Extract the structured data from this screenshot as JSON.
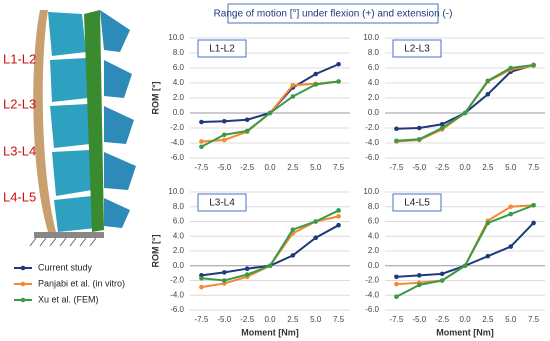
{
  "figure_title": "Range of motion [°] under flexion (+) and extension (-)",
  "image_labels": [
    "L1-L2",
    "L2-L3",
    "L3-L4",
    "L4-L5"
  ],
  "chart_data": [
    {
      "type": "line",
      "title": "L1-L2",
      "y_label": "ROM [°]",
      "categories": [
        "-7.5",
        "-5.0",
        "-2.5",
        "0.0",
        "2.5",
        "5.0",
        "7.5"
      ],
      "ylim": [
        -6,
        10
      ],
      "yticks": [
        {
          "value": -6,
          "label": "-6.0"
        },
        {
          "value": -4,
          "label": "-4.0"
        },
        {
          "value": -2,
          "label": "-2.0"
        },
        {
          "value": 0,
          "label": "0.0"
        },
        {
          "value": 2,
          "label": "2.0"
        },
        {
          "value": 4,
          "label": "4.0"
        },
        {
          "value": 6,
          "label": "6.0"
        },
        {
          "value": 8,
          "label": "8.0"
        },
        {
          "value": 10,
          "label": "10.0"
        }
      ],
      "grid": true,
      "series": [
        {
          "name": "Current study",
          "color": "#1f3a7a",
          "values": [
            -1.2,
            -1.1,
            -0.9,
            0,
            3.4,
            5.2,
            6.5
          ]
        },
        {
          "name": "Panjabi et al. (in vitro)",
          "color": "#f28a30",
          "values": [
            -3.8,
            -3.6,
            -2.5,
            0,
            3.7,
            3.9,
            4.2
          ]
        },
        {
          "name": "Xu et al. (FEM)",
          "color": "#3a9a4a",
          "values": [
            -4.5,
            -2.9,
            -2.4,
            0,
            2.2,
            3.8,
            4.2
          ]
        }
      ]
    },
    {
      "type": "line",
      "title": "L2-L3",
      "categories": [
        "-7.5",
        "-5.0",
        "-2.5",
        "0.0",
        "2.5",
        "5.0",
        "7.5"
      ],
      "ylim": [
        -6,
        10
      ],
      "yticks": [
        {
          "value": -6,
          "label": "-6.0"
        },
        {
          "value": -4,
          "label": "-4.0"
        },
        {
          "value": -2,
          "label": "-2.0"
        },
        {
          "value": 0,
          "label": "0.0"
        },
        {
          "value": 2,
          "label": "2.0"
        },
        {
          "value": 4,
          "label": "4.0"
        },
        {
          "value": 6,
          "label": "6.0"
        },
        {
          "value": 8,
          "label": "8.0"
        },
        {
          "value": 10,
          "label": "10.0"
        }
      ],
      "grid": true,
      "series": [
        {
          "color": "#1f3a7a",
          "values": [
            -2.1,
            -2.0,
            -1.5,
            0,
            2.5,
            5.5,
            6.4
          ]
        },
        {
          "color": "#f28a30",
          "values": [
            -3.8,
            -3.6,
            -2.2,
            0,
            4.2,
            5.8,
            6.3
          ]
        },
        {
          "color": "#3a9a4a",
          "values": [
            -3.7,
            -3.5,
            -2.0,
            0,
            4.3,
            6.0,
            6.4
          ]
        }
      ]
    },
    {
      "type": "line",
      "title": "L3-L4",
      "y_label": "ROM [°]",
      "x_label": "Moment [Nm]",
      "categories": [
        "-7.5",
        "-5.0",
        "-2.5",
        "0.0",
        "2.5",
        "5.0",
        "7.5"
      ],
      "ylim": [
        -6,
        10
      ],
      "yticks": [
        {
          "value": -6,
          "label": "-6.0"
        },
        {
          "value": -4,
          "label": "-4.0"
        },
        {
          "value": -2,
          "label": "-2.0"
        },
        {
          "value": 0,
          "label": "0.0"
        },
        {
          "value": 2,
          "label": "2.0"
        },
        {
          "value": 4,
          "label": "4.0"
        },
        {
          "value": 6,
          "label": "6.0"
        },
        {
          "value": 8,
          "label": "8.0"
        },
        {
          "value": 10,
          "label": "10.0"
        }
      ],
      "grid": true,
      "series": [
        {
          "color": "#1f3a7a",
          "values": [
            -1.3,
            -0.9,
            -0.4,
            0,
            1.4,
            3.8,
            5.5
          ]
        },
        {
          "color": "#f28a30",
          "values": [
            -2.9,
            -2.4,
            -1.5,
            0,
            4.4,
            6.0,
            6.7
          ]
        },
        {
          "color": "#3a9a4a",
          "values": [
            -1.7,
            -2.0,
            -1.2,
            0,
            4.9,
            6.0,
            7.5
          ]
        }
      ]
    },
    {
      "type": "line",
      "title": "L4-L5",
      "x_label": "Moment [Nm]",
      "categories": [
        "-7.5",
        "-5.0",
        "-2.5",
        "0.0",
        "2.5",
        "5.0",
        "7.5"
      ],
      "ylim": [
        -6,
        10
      ],
      "yticks": [
        {
          "value": -6,
          "label": "-6.0"
        },
        {
          "value": -4,
          "label": "-4.0"
        },
        {
          "value": -2,
          "label": "-2.0"
        },
        {
          "value": 0,
          "label": "0.0"
        },
        {
          "value": 2,
          "label": "2.0"
        },
        {
          "value": 4,
          "label": "4.0"
        },
        {
          "value": 6,
          "label": "6.0"
        },
        {
          "value": 8,
          "label": "8.0"
        },
        {
          "value": 10,
          "label": "10.0"
        }
      ],
      "grid": true,
      "series": [
        {
          "color": "#1f3a7a",
          "values": [
            -1.5,
            -1.3,
            -1.1,
            0,
            1.3,
            2.6,
            5.8
          ]
        },
        {
          "color": "#f28a30",
          "values": [
            -2.5,
            -2.3,
            -2.0,
            0,
            6.1,
            8.0,
            8.2
          ]
        },
        {
          "color": "#3a9a4a",
          "values": [
            -4.2,
            -2.6,
            -2.0,
            0,
            5.8,
            7.0,
            8.2
          ]
        }
      ]
    }
  ]
}
